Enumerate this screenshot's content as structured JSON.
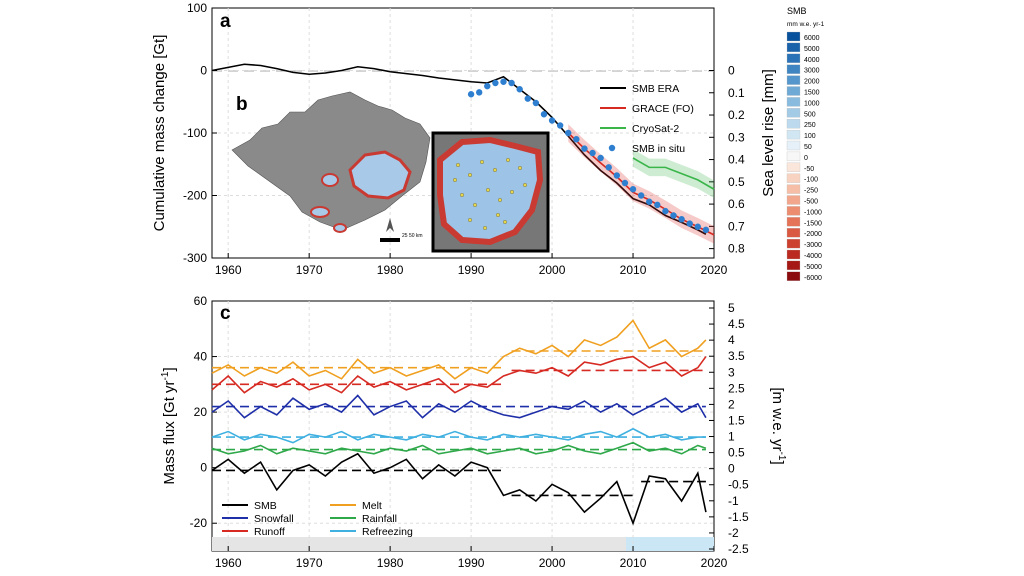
{
  "chart_data": [
    {
      "panel": "a",
      "type": "line",
      "ylabel": "Cumulative mass change [Gt]",
      "y2label": "Sea level rise [mm]",
      "xlim": [
        1958,
        2020
      ],
      "ylim": [
        -300,
        100
      ],
      "xticks": [
        1960,
        1970,
        1980,
        1990,
        2000,
        2010,
        2020
      ],
      "yticks": [
        100,
        0,
        -100,
        -200,
        -300
      ],
      "y2ticks": [
        "0",
        "0.1",
        "0.2",
        "0.3",
        "0.4",
        "0.5",
        "0.6",
        "0.7",
        "0.8"
      ],
      "legend_position": "right",
      "grid": true,
      "series": [
        {
          "name": "SMB ERA",
          "color": "#000000",
          "x": [
            1958,
            1960,
            1962,
            1964,
            1966,
            1968,
            1970,
            1972,
            1974,
            1976,
            1978,
            1980,
            1982,
            1984,
            1986,
            1988,
            1990,
            1992,
            1994,
            1995,
            1996,
            1998,
            2000,
            2002,
            2004,
            2006,
            2008,
            2010,
            2012,
            2014,
            2016,
            2018,
            2019
          ],
          "y": [
            0,
            5,
            10,
            8,
            3,
            -3,
            -6,
            -4,
            0,
            6,
            3,
            -2,
            -5,
            -8,
            -12,
            -15,
            -18,
            -20,
            -10,
            -20,
            -30,
            -50,
            -75,
            -105,
            -135,
            -160,
            -180,
            -205,
            -215,
            -232,
            -243,
            -255,
            -262
          ]
        },
        {
          "name": "GRACE (FO)",
          "color": "#d62a22",
          "x": [
            2002,
            2004,
            2006,
            2008,
            2010,
            2012,
            2014,
            2016,
            2018,
            2020
          ],
          "y": [
            -100,
            -125,
            -148,
            -170,
            -195,
            -207,
            -222,
            -238,
            -250,
            -263
          ]
        },
        {
          "name": "CryoSat-2",
          "color": "#3ab54a",
          "x": [
            2010,
            2012,
            2014,
            2016,
            2018,
            2020
          ],
          "y": [
            -140,
            -155,
            -155,
            -165,
            -175,
            -190
          ]
        },
        {
          "name": "SMB in situ",
          "color": "#2f7fd0",
          "style": "points",
          "x": [
            1990,
            1991,
            1992,
            1993,
            1994,
            1995,
            1996,
            1997,
            1998,
            1999,
            2000,
            2001,
            2002,
            2003,
            2004,
            2005,
            2006,
            2007,
            2008,
            2009,
            2010,
            2011,
            2012,
            2013,
            2014,
            2015,
            2016,
            2017,
            2018,
            2019
          ],
          "y": [
            -38,
            -35,
            -25,
            -20,
            -18,
            -20,
            -30,
            -45,
            -52,
            -70,
            -80,
            -88,
            -100,
            -110,
            -125,
            -132,
            -140,
            -155,
            -168,
            -180,
            -190,
            -200,
            -210,
            -215,
            -225,
            -232,
            -238,
            -245,
            -250,
            -255
          ]
        }
      ]
    },
    {
      "panel": "c",
      "type": "line",
      "ylabel": "Mass flux [Gt yr",
      "ylabel_sup": "-1",
      "ylabel_end": "]",
      "y2label": "[m w.e. yr",
      "y2label_sup": "-1",
      "y2label_end": "]",
      "xlim": [
        1958,
        2020
      ],
      "ylim": [
        -30,
        60
      ],
      "xticks": [
        1960,
        1970,
        1980,
        1990,
        2000,
        2010,
        2020
      ],
      "yticks": [
        60,
        40,
        20,
        0,
        -20
      ],
      "y2ticks": [
        "5",
        "4.5",
        "4",
        "3.5",
        "3",
        "2.5",
        "2",
        "1.5",
        "1",
        "0.5",
        "0",
        "-0.5",
        "-1",
        "-1.5",
        "-2",
        "-2.5"
      ],
      "legend_position": "bottom-left",
      "grid": true,
      "series": [
        {
          "name": "SMB",
          "color": "#000000",
          "x": [
            1958,
            1960,
            1962,
            1964,
            1966,
            1968,
            1970,
            1972,
            1974,
            1976,
            1978,
            1980,
            1982,
            1984,
            1986,
            1988,
            1990,
            1992,
            1994,
            1996,
            1998,
            2000,
            2002,
            2004,
            2006,
            2008,
            2010,
            2012,
            2014,
            2016,
            2018,
            2019
          ],
          "y": [
            -1,
            3,
            -2,
            2,
            -8,
            -1,
            1,
            -3,
            2,
            5,
            -2,
            0,
            3,
            -4,
            1,
            -3,
            2,
            0,
            -10,
            -8,
            -12,
            -6,
            -9,
            -16,
            -11,
            -5,
            -20,
            -3,
            -4,
            -12,
            -2,
            -16
          ],
          "mean_periods": [
            {
              "x": [
                1958,
                1994
              ],
              "y": -1
            },
            {
              "x": [
                1995,
                2010
              ],
              "y": -10
            },
            {
              "x": [
                2011,
                2019
              ],
              "y": -5
            }
          ]
        },
        {
          "name": "Snowfall",
          "color": "#1f2fa8",
          "x": [
            1958,
            1960,
            1962,
            1964,
            1966,
            1968,
            1970,
            1972,
            1974,
            1976,
            1978,
            1980,
            1982,
            1984,
            1986,
            1988,
            1990,
            1992,
            1994,
            1996,
            1998,
            2000,
            2002,
            2004,
            2006,
            2008,
            2010,
            2012,
            2014,
            2016,
            2018,
            2019
          ],
          "y": [
            20,
            24,
            18,
            22,
            19,
            25,
            21,
            23,
            20,
            26,
            19,
            22,
            24,
            18,
            23,
            20,
            24,
            21,
            19,
            18,
            20,
            22,
            21,
            24,
            20,
            23,
            19,
            22,
            25,
            20,
            23,
            18
          ],
          "mean_periods": [
            {
              "x": [
                1958,
                2019
              ],
              "y": 22
            }
          ]
        },
        {
          "name": "Runoff",
          "color": "#d62a22",
          "x": [
            1958,
            1960,
            1962,
            1964,
            1966,
            1968,
            1970,
            1972,
            1974,
            1976,
            1978,
            1980,
            1982,
            1984,
            1986,
            1988,
            1990,
            1992,
            1994,
            1996,
            1998,
            2000,
            2002,
            2004,
            2006,
            2008,
            2010,
            2012,
            2014,
            2016,
            2018,
            2019
          ],
          "y": [
            28,
            33,
            27,
            31,
            29,
            32,
            28,
            30,
            27,
            33,
            29,
            31,
            28,
            30,
            32,
            27,
            30,
            29,
            33,
            35,
            34,
            36,
            33,
            38,
            37,
            39,
            40,
            36,
            38,
            33,
            36,
            40
          ],
          "mean_periods": [
            {
              "x": [
                1958,
                1994
              ],
              "y": 30
            },
            {
              "x": [
                1995,
                2019
              ],
              "y": 35
            }
          ]
        },
        {
          "name": "Melt",
          "color": "#f0a020",
          "x": [
            1958,
            1960,
            1962,
            1964,
            1966,
            1968,
            1970,
            1972,
            1974,
            1976,
            1978,
            1980,
            1982,
            1984,
            1986,
            1988,
            1990,
            1992,
            1994,
            1996,
            1998,
            2000,
            2002,
            2004,
            2006,
            2008,
            2010,
            2012,
            2014,
            2016,
            2018,
            2019
          ],
          "y": [
            34,
            37,
            33,
            36,
            34,
            38,
            33,
            35,
            32,
            39,
            34,
            36,
            33,
            35,
            37,
            32,
            36,
            34,
            40,
            43,
            41,
            44,
            40,
            46,
            44,
            47,
            53,
            43,
            46,
            40,
            43,
            46
          ],
          "mean_periods": [
            {
              "x": [
                1958,
                1994
              ],
              "y": 36
            },
            {
              "x": [
                1995,
                2019
              ],
              "y": 42
            }
          ]
        },
        {
          "name": "Rainfall",
          "color": "#2fa84a",
          "x": [
            1958,
            1960,
            1962,
            1964,
            1966,
            1968,
            1970,
            1972,
            1974,
            1976,
            1978,
            1980,
            1982,
            1984,
            1986,
            1988,
            1990,
            1992,
            1994,
            1996,
            1998,
            2000,
            2002,
            2004,
            2006,
            2008,
            2010,
            2012,
            2014,
            2016,
            2018,
            2019
          ],
          "y": [
            7,
            5,
            6,
            8,
            5,
            7,
            6,
            5,
            7,
            6,
            5,
            7,
            6,
            8,
            5,
            6,
            7,
            5,
            6,
            7,
            5,
            6,
            8,
            6,
            5,
            7,
            9,
            6,
            7,
            5,
            8,
            7
          ],
          "mean_periods": [
            {
              "x": [
                1958,
                2019
              ],
              "y": 6.5
            }
          ]
        },
        {
          "name": "Refreezing",
          "color": "#3fb0e0",
          "x": [
            1958,
            1960,
            1962,
            1964,
            1966,
            1968,
            1970,
            1972,
            1974,
            1976,
            1978,
            1980,
            1982,
            1984,
            1986,
            1988,
            1990,
            1992,
            1994,
            1996,
            1998,
            2000,
            2002,
            2004,
            2006,
            2008,
            2010,
            2012,
            2014,
            2016,
            2018,
            2019
          ],
          "y": [
            11,
            13,
            10,
            12,
            11,
            9,
            12,
            11,
            13,
            10,
            12,
            11,
            10,
            12,
            11,
            13,
            11,
            10,
            12,
            11,
            12,
            11,
            10,
            12,
            13,
            11,
            14,
            11,
            12,
            10,
            11,
            11
          ],
          "mean_periods": [
            {
              "x": [
                1958,
                2019
              ],
              "y": 11
            }
          ]
        }
      ]
    }
  ],
  "panel_labels": {
    "a": "a",
    "b": "b",
    "c": "c"
  },
  "colorbar": {
    "title": "SMB",
    "unit": "mm w.e. yr-1",
    "levels": [
      {
        "label": "6000",
        "color": "#08519c"
      },
      {
        "label": "5000",
        "color": "#1a62a9"
      },
      {
        "label": "4000",
        "color": "#2b73b6"
      },
      {
        "label": "3000",
        "color": "#3e85c2"
      },
      {
        "label": "2000",
        "color": "#5597cc"
      },
      {
        "label": "1500",
        "color": "#6fa9d6"
      },
      {
        "label": "1000",
        "color": "#89bbdf"
      },
      {
        "label": "500",
        "color": "#a4cbe6"
      },
      {
        "label": "250",
        "color": "#bcd9ee"
      },
      {
        "label": "100",
        "color": "#d1e6f3"
      },
      {
        "label": "50",
        "color": "#e6f0f8"
      },
      {
        "label": "0",
        "color": "#f7f7f7"
      },
      {
        "label": "-50",
        "color": "#fbe6dc"
      },
      {
        "label": "-100",
        "color": "#f9d3c2"
      },
      {
        "label": "-250",
        "color": "#f6bea7"
      },
      {
        "label": "-500",
        "color": "#f2a68b"
      },
      {
        "label": "-1000",
        "color": "#ec8d70"
      },
      {
        "label": "-1500",
        "color": "#e47358"
      },
      {
        "label": "-2000",
        "color": "#d95942"
      },
      {
        "label": "-3000",
        "color": "#cc402f"
      },
      {
        "label": "-4000",
        "color": "#bb2a20"
      },
      {
        "label": "-5000",
        "color": "#a51815"
      },
      {
        "label": "-6000",
        "color": "#8a0c0f"
      }
    ]
  },
  "map": {
    "scale_text": "25    50 km"
  }
}
